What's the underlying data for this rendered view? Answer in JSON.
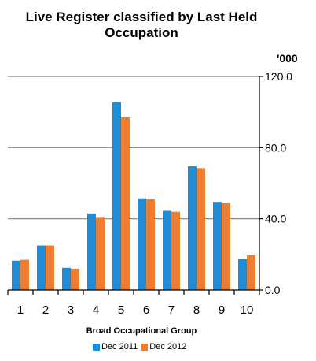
{
  "chart_data": {
    "type": "bar",
    "title": "Live Register classified by Last Held Occupation",
    "title_lines": [
      "Live Register classified by Last Held",
      "Occupation"
    ],
    "unit_label": "'000",
    "xlabel": "Broad Occupational Group",
    "categories": [
      "1",
      "2",
      "3",
      "4",
      "5",
      "6",
      "7",
      "8",
      "9",
      "10"
    ],
    "series": [
      {
        "name": "Dec 2011",
        "color": "#1f8dd6",
        "values": [
          16.5,
          25.0,
          12.5,
          43.0,
          105.5,
          51.5,
          44.5,
          69.5,
          49.5,
          17.5
        ]
      },
      {
        "name": "Dec 2012",
        "color": "#ed7d31",
        "values": [
          17.0,
          25.0,
          12.0,
          41.0,
          97.0,
          51.0,
          44.0,
          68.5,
          49.0,
          19.5
        ]
      }
    ],
    "ylim": [
      0,
      120
    ],
    "yticks": [
      "0.0",
      "40.0",
      "80.0",
      "120.0"
    ],
    "ytick_values": [
      0,
      40,
      80,
      120
    ],
    "y_axis_side": "right",
    "grid": true,
    "legend_position": "bottom"
  }
}
